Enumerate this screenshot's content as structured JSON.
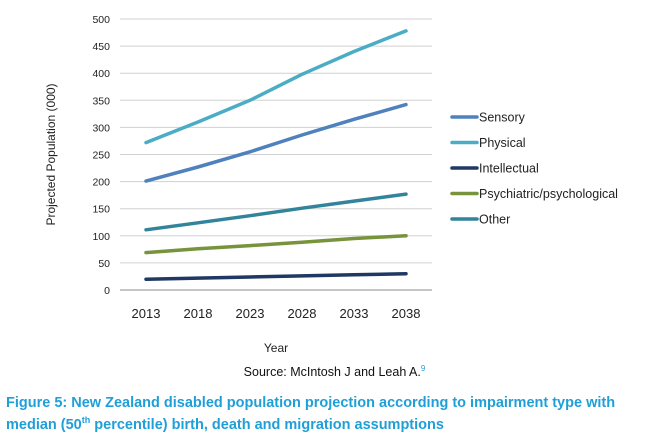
{
  "chart_data": {
    "type": "line",
    "x": [
      2013,
      2018,
      2023,
      2028,
      2033,
      2038
    ],
    "xlabel": "Year",
    "ylabel": "Projected Population (000)",
    "ylim": [
      0,
      500
    ],
    "yticks": [
      0,
      50,
      100,
      150,
      200,
      250,
      300,
      350,
      400,
      450,
      500
    ],
    "grid": "horizontal",
    "legend_position": "right",
    "series": [
      {
        "name": "Sensory",
        "color": "#4f81bd",
        "values": [
          201,
          227,
          255,
          286,
          315,
          342
        ]
      },
      {
        "name": "Physical",
        "color": "#4bacc6",
        "values": [
          272,
          310,
          350,
          398,
          440,
          478
        ]
      },
      {
        "name": "Intellectual",
        "color": "#1f3864",
        "values": [
          20,
          22,
          24,
          26,
          28,
          30
        ]
      },
      {
        "name": "Psychiatric/psychological",
        "color": "#77933c",
        "values": [
          69,
          76,
          82,
          88,
          95,
          100
        ]
      },
      {
        "name": "Other",
        "color": "#31849b",
        "values": [
          111,
          124,
          137,
          151,
          164,
          177
        ]
      }
    ]
  },
  "source": {
    "text": "Source: McIntosh J and Leah A.",
    "ref": "9"
  },
  "caption": {
    "prefix": "Figure 5: New Zealand disabled population projection according to impairment type with median (50",
    "sup": "th",
    "suffix": " percentile) birth, death and migration assumptions"
  }
}
